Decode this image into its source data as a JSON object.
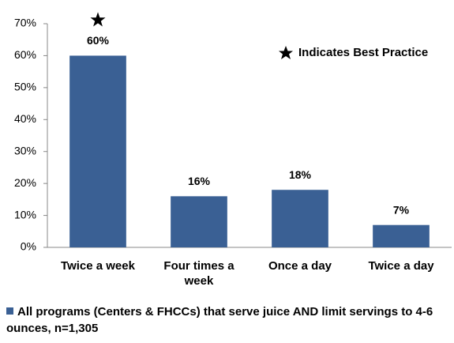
{
  "chart_data": {
    "type": "bar",
    "categories": [
      "Twice a week",
      "Four times a week",
      "Once a day",
      "Twice a day"
    ],
    "series": [
      {
        "name": "All programs (Centers & FHCCs) that serve juice AND limit servings to 4-6 ounces, n=1,305",
        "color": "#3a6094",
        "values": [
          60,
          16,
          18,
          7
        ],
        "value_labels": [
          "60%",
          "16%",
          "18%",
          "7%"
        ]
      }
    ],
    "ylim": [
      0,
      70
    ],
    "yticks": [
      {
        "value": 0,
        "label": "0%"
      },
      {
        "value": 10,
        "label": "10%"
      },
      {
        "value": 20,
        "label": "20%"
      },
      {
        "value": 30,
        "label": "30%"
      },
      {
        "value": 40,
        "label": "40%"
      },
      {
        "value": 50,
        "label": "50%"
      },
      {
        "value": 60,
        "label": "60%"
      },
      {
        "value": 70,
        "label": "70%"
      }
    ],
    "annotations": [
      "Indicates Best Practice"
    ],
    "grid": false
  }
}
